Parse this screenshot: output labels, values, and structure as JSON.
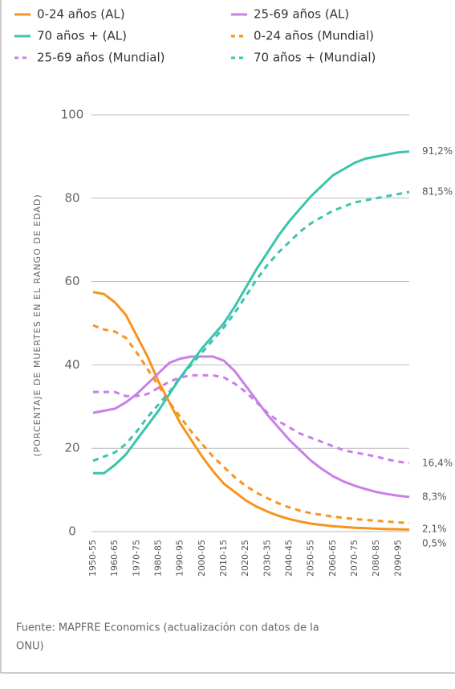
{
  "chart_data": {
    "type": "line",
    "y_label": "(PORCENTAJE DE MUERTES EN EL RANGO DE EDAD)",
    "source": [
      "Fuente: MAPFRE Economics (actualización con datos de la",
      "ONU)"
    ],
    "categories": [
      "1950-55",
      null,
      "1960-65",
      null,
      "1970-75",
      null,
      "1980-85",
      null,
      "1990-95",
      null,
      "2000-05",
      null,
      "2010-15",
      null,
      "2020-25",
      null,
      "2030-35",
      null,
      "2040-45",
      null,
      "2050-55",
      null,
      "2060-65",
      null,
      "2070-75",
      null,
      "2080-85",
      null,
      "2090-95",
      null
    ],
    "ylim": [
      0,
      100
    ],
    "yticks": [
      0,
      20,
      40,
      60,
      80,
      100
    ],
    "grid": true,
    "series": [
      {
        "name": "0-24 años (AL)",
        "color": "#f7941d",
        "dashed": false,
        "end_label": "0,5%",
        "values": [
          57.5,
          57,
          55,
          52,
          47,
          42,
          36,
          31,
          26,
          22,
          18,
          14.5,
          11.5,
          9.5,
          7.5,
          6,
          4.8,
          3.8,
          3,
          2.4,
          1.9,
          1.6,
          1.3,
          1.1,
          0.9,
          0.8,
          0.7,
          0.6,
          0.55,
          0.5
        ]
      },
      {
        "name": "25-69 años (AL)",
        "color": "#c97fe8",
        "dashed": false,
        "end_label": "8,3%",
        "values": [
          28.5,
          29,
          29.5,
          31,
          33,
          35.5,
          38,
          40.5,
          41.5,
          42,
          42,
          42,
          41,
          38.5,
          35,
          31.5,
          28,
          25,
          22,
          19.5,
          17,
          15,
          13.3,
          12,
          11,
          10.2,
          9.5,
          9,
          8.6,
          8.3
        ]
      },
      {
        "name": "70 años + (AL)",
        "color": "#3cc4ae",
        "dashed": false,
        "end_label": "91,2%",
        "values": [
          14,
          14,
          16,
          18.5,
          22,
          25.5,
          29,
          33,
          37,
          40.5,
          44,
          47,
          50,
          54,
          58.5,
          63,
          67,
          71,
          74.5,
          77.5,
          80.5,
          83,
          85.5,
          87,
          88.5,
          89.5,
          90,
          90.5,
          91,
          91.2
        ]
      },
      {
        "name": "0-24 años (Mundial)",
        "color": "#f7941d",
        "dashed": true,
        "end_label": "2,1%",
        "values": [
          49.5,
          48.5,
          48,
          46.5,
          43,
          39,
          35,
          31,
          27.5,
          24,
          21,
          18,
          15.5,
          13,
          11,
          9.3,
          8,
          6.8,
          5.8,
          5,
          4.4,
          4,
          3.6,
          3.3,
          3,
          2.8,
          2.6,
          2.4,
          2.2,
          2.1
        ]
      },
      {
        "name": "25-69 años (Mundial)",
        "color": "#c97fe8",
        "dashed": true,
        "end_label": "16,4%",
        "values": [
          33.5,
          33.5,
          33.5,
          32.5,
          32.5,
          33,
          34.5,
          36,
          37,
          37.5,
          37.5,
          37.5,
          37,
          35.5,
          33.5,
          31,
          28.5,
          26.5,
          25,
          23.5,
          22.5,
          21.5,
          20.5,
          19.5,
          19,
          18.5,
          18,
          17.3,
          16.8,
          16.4
        ]
      },
      {
        "name": "70 años + (Mundial)",
        "color": "#3cc4ae",
        "dashed": true,
        "end_label": "81,5%",
        "values": [
          17,
          18,
          19,
          21,
          24,
          27.5,
          30.5,
          33.5,
          37,
          40,
          43,
          46,
          49,
          52.5,
          56.5,
          60.5,
          64,
          67,
          69.5,
          72,
          74,
          75.5,
          77,
          78,
          79,
          79.5,
          80,
          80.5,
          81,
          81.5
        ]
      }
    ]
  }
}
